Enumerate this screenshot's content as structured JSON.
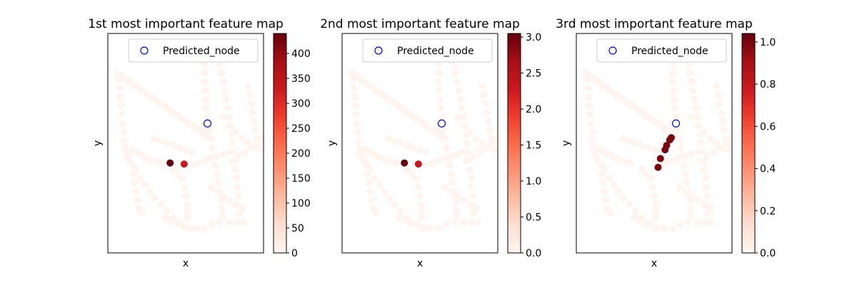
{
  "chart_data": [
    {
      "type": "scatter",
      "title": "1st most important feature map",
      "xlabel": "x",
      "ylabel": "y",
      "legend": {
        "label": "Predicted_node",
        "placement": "top-right",
        "marker_color": "#0000ff"
      },
      "colorbar": {
        "cmap": "Reds",
        "range": [
          0,
          440
        ],
        "ticks": [
          "0",
          "50",
          "100",
          "150",
          "200",
          "250",
          "300",
          "350",
          "400"
        ],
        "tick_values": [
          0,
          50,
          100,
          150,
          200,
          250,
          300,
          350,
          400
        ]
      },
      "xlim": [
        0,
        100
      ],
      "ylim": [
        0,
        100
      ],
      "predicted_node": {
        "x": 64,
        "y": 59
      },
      "highlights": [
        {
          "x": 40,
          "y": 41,
          "value": 440
        },
        {
          "x": 49,
          "y": 40.5,
          "value": 330
        }
      ]
    },
    {
      "type": "scatter",
      "title": "2nd most important feature map",
      "xlabel": "x",
      "ylabel": "y",
      "legend": {
        "label": "Predicted_node",
        "placement": "top-right",
        "marker_color": "#0000ff"
      },
      "colorbar": {
        "cmap": "Reds",
        "range": [
          0,
          3.05
        ],
        "ticks": [
          "0.0",
          "0.5",
          "1.0",
          "1.5",
          "2.0",
          "2.5",
          "3.0"
        ],
        "tick_values": [
          0,
          0.5,
          1,
          1.5,
          2,
          2.5,
          3
        ]
      },
      "xlim": [
        0,
        100
      ],
      "ylim": [
        0,
        100
      ],
      "predicted_node": {
        "x": 64,
        "y": 59
      },
      "highlights": [
        {
          "x": 40,
          "y": 41,
          "value": 3.05
        },
        {
          "x": 49,
          "y": 40.5,
          "value": 2.3
        }
      ]
    },
    {
      "type": "scatter",
      "title": "3rd most important feature map",
      "xlabel": "x",
      "ylabel": "y",
      "legend": {
        "label": "Predicted_node",
        "placement": "top-right",
        "marker_color": "#0000ff"
      },
      "colorbar": {
        "cmap": "Reds",
        "range": [
          0,
          1.04
        ],
        "ticks": [
          "0.0",
          "0.2",
          "0.4",
          "0.6",
          "0.8",
          "1.0"
        ],
        "tick_values": [
          0,
          0.2,
          0.4,
          0.6,
          0.8,
          1.0
        ]
      },
      "xlim": [
        0,
        100
      ],
      "ylim": [
        0,
        100
      ],
      "predicted_node": {
        "x": 64,
        "y": 59
      },
      "highlights": [
        {
          "x": 52.5,
          "y": 39,
          "value": 1.0
        },
        {
          "x": 54,
          "y": 43,
          "value": 1.0
        },
        {
          "x": 57,
          "y": 47,
          "value": 1.0
        },
        {
          "x": 58,
          "y": 49,
          "value": 1.0
        },
        {
          "x": 60,
          "y": 51.5,
          "value": 1.0
        },
        {
          "x": 61,
          "y": 52.5,
          "value": 1.0
        }
      ]
    }
  ],
  "graph_nodes": [
    [
      6,
      82
    ],
    [
      8,
      81
    ],
    [
      10,
      80
    ],
    [
      12,
      79
    ],
    [
      14,
      78
    ],
    [
      16,
      77
    ],
    [
      18,
      76
    ],
    [
      20,
      75
    ],
    [
      22,
      74
    ],
    [
      24,
      73
    ],
    [
      26,
      72
    ],
    [
      28,
      71
    ],
    [
      30,
      70
    ],
    [
      32,
      69
    ],
    [
      34,
      68
    ],
    [
      36,
      67
    ],
    [
      38,
      66
    ],
    [
      40,
      65
    ],
    [
      42,
      64
    ],
    [
      44,
      63
    ],
    [
      46,
      62
    ],
    [
      48,
      61
    ],
    [
      50,
      60
    ],
    [
      52,
      59
    ],
    [
      54,
      58
    ],
    [
      56,
      57
    ],
    [
      58,
      56
    ],
    [
      60,
      55
    ],
    [
      62,
      54
    ],
    [
      64,
      53
    ],
    [
      66,
      52
    ],
    [
      7,
      79
    ],
    [
      7.5,
      75
    ],
    [
      8,
      71
    ],
    [
      8.5,
      67
    ],
    [
      9,
      63
    ],
    [
      9.5,
      59
    ],
    [
      10,
      55
    ],
    [
      10.5,
      51
    ],
    [
      11,
      48
    ],
    [
      12,
      45
    ],
    [
      13,
      44
    ],
    [
      15,
      47
    ],
    [
      18,
      46
    ],
    [
      20,
      45
    ],
    [
      23,
      44
    ],
    [
      26,
      43
    ],
    [
      29,
      42
    ],
    [
      32,
      41.5
    ],
    [
      35,
      41
    ],
    [
      14,
      42
    ],
    [
      18,
      38
    ],
    [
      21,
      34
    ],
    [
      24,
      31
    ],
    [
      27,
      28
    ],
    [
      30,
      25
    ],
    [
      34,
      22
    ],
    [
      38,
      19
    ],
    [
      42,
      16
    ],
    [
      47,
      13
    ],
    [
      52,
      11
    ],
    [
      57,
      11
    ],
    [
      62,
      11
    ],
    [
      67,
      13
    ],
    [
      72,
      14
    ],
    [
      78,
      14
    ],
    [
      83,
      14
    ],
    [
      87,
      14
    ],
    [
      37,
      16
    ],
    [
      40,
      15
    ],
    [
      44,
      13.5
    ],
    [
      50,
      12
    ],
    [
      55,
      11.5
    ],
    [
      42,
      38
    ],
    [
      45,
      36
    ],
    [
      48,
      34
    ],
    [
      49,
      30
    ],
    [
      50,
      26
    ],
    [
      51,
      22
    ],
    [
      51,
      19
    ],
    [
      51,
      16
    ],
    [
      54,
      40
    ],
    [
      58,
      41
    ],
    [
      62,
      42
    ],
    [
      66,
      43
    ],
    [
      70,
      44
    ],
    [
      74,
      45
    ],
    [
      78,
      46
    ],
    [
      30,
      52
    ],
    [
      34,
      51
    ],
    [
      38,
      50
    ],
    [
      42,
      49
    ],
    [
      46,
      48
    ],
    [
      50,
      47
    ],
    [
      54,
      46
    ],
    [
      62,
      86
    ],
    [
      62,
      82
    ],
    [
      62,
      78
    ],
    [
      62,
      74
    ],
    [
      63,
      70
    ],
    [
      63,
      66
    ],
    [
      64,
      62
    ],
    [
      65,
      56
    ],
    [
      66,
      52
    ],
    [
      67,
      48
    ],
    [
      68,
      44
    ],
    [
      69,
      40
    ],
    [
      70,
      36
    ],
    [
      71,
      32
    ],
    [
      72,
      28
    ],
    [
      73,
      24
    ],
    [
      73,
      20
    ],
    [
      74,
      17
    ],
    [
      72,
      86
    ],
    [
      73,
      82
    ],
    [
      74,
      78
    ],
    [
      75,
      74
    ],
    [
      76,
      70
    ],
    [
      77,
      66
    ],
    [
      78,
      62
    ],
    [
      79,
      58
    ],
    [
      80,
      54
    ],
    [
      80,
      50
    ],
    [
      81,
      46
    ],
    [
      82,
      42
    ],
    [
      82,
      38
    ],
    [
      83,
      34
    ],
    [
      83,
      30
    ],
    [
      84,
      26
    ],
    [
      84,
      22
    ],
    [
      84,
      18
    ],
    [
      85,
      14
    ],
    [
      90,
      76
    ],
    [
      91,
      72
    ],
    [
      92,
      68
    ],
    [
      93,
      64
    ],
    [
      94,
      60
    ],
    [
      95,
      56
    ],
    [
      96,
      52
    ],
    [
      74,
      62
    ],
    [
      78,
      58
    ],
    [
      82,
      55
    ],
    [
      86,
      52
    ],
    [
      90,
      50
    ],
    [
      94,
      48
    ],
    [
      98,
      47
    ],
    [
      80,
      42
    ],
    [
      84,
      44
    ],
    [
      88,
      46
    ],
    [
      92,
      48
    ],
    [
      96,
      50
    ],
    [
      99,
      52
    ],
    [
      66,
      30
    ],
    [
      70,
      28
    ],
    [
      74,
      26
    ],
    [
      78,
      24
    ],
    [
      82,
      22
    ],
    [
      86,
      20
    ],
    [
      16,
      40
    ],
    [
      16,
      36
    ],
    [
      17,
      32
    ],
    [
      18,
      28
    ],
    [
      19,
      24
    ],
    [
      20,
      20
    ],
    [
      22,
      18
    ]
  ]
}
